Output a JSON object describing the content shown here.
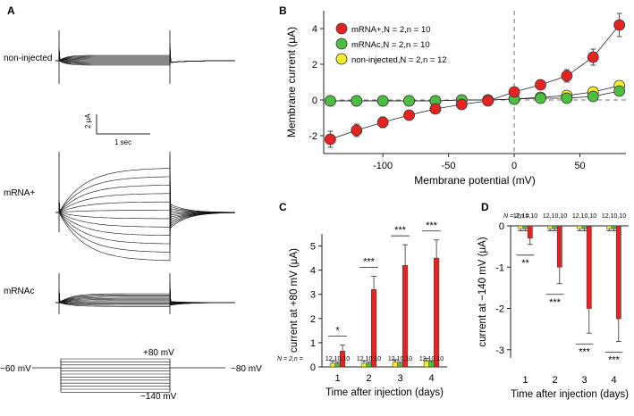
{
  "panel_a": {
    "label": "A",
    "traces": [
      {
        "name": "non-injected"
      },
      {
        "name": "mRNA+"
      },
      {
        "name": "mRNAc"
      }
    ],
    "scale_bar": {
      "y_label": "2 μA",
      "x_label": "1 sec"
    },
    "protocol": {
      "holding": "−60 mV",
      "top": "+80 mV",
      "bottom": "−140 mV",
      "tail": "−80 mV"
    }
  },
  "chart_data": [
    {
      "panel": "B",
      "type": "line",
      "xlabel": "Membrane potential (mV)",
      "ylabel": "Membrane current (μA)",
      "xlim": [
        -145,
        85
      ],
      "ylim": [
        -3,
        5
      ],
      "x_ticks": [
        -100,
        -50,
        0,
        50
      ],
      "y_ticks": [
        -2,
        0,
        2,
        4
      ],
      "x": [
        -140,
        -120,
        -100,
        -80,
        -60,
        -40,
        -20,
        0,
        20,
        40,
        60,
        80
      ],
      "series": [
        {
          "name": "mRNA+,N = 2,n = 10",
          "color": "#e52421",
          "values": [
            -2.2,
            -1.7,
            -1.25,
            -0.85,
            -0.5,
            -0.25,
            -0.05,
            0.45,
            0.85,
            1.35,
            2.4,
            4.2
          ],
          "errors": [
            0.45,
            0.35,
            0.3,
            0.2,
            0.15,
            0.1,
            0.08,
            0.15,
            0.25,
            0.35,
            0.45,
            0.65
          ]
        },
        {
          "name": "mRNAc,N = 2,n = 10",
          "color": "#4dbf40",
          "values": [
            -0.05,
            -0.05,
            -0.05,
            -0.05,
            -0.05,
            0.0,
            0.0,
            0.05,
            0.1,
            0.1,
            0.2,
            0.5
          ],
          "errors": [
            0.05,
            0.05,
            0.05,
            0.05,
            0.05,
            0.05,
            0.05,
            0.05,
            0.05,
            0.05,
            0.05,
            0.1
          ]
        },
        {
          "name": "non-injected,N = 2,n = 12",
          "color": "#f4ec2a",
          "values": [
            -0.05,
            -0.05,
            -0.05,
            -0.05,
            -0.05,
            0.0,
            0.0,
            0.05,
            0.15,
            0.25,
            0.45,
            0.8
          ],
          "errors": [
            0.05,
            0.05,
            0.05,
            0.05,
            0.05,
            0.05,
            0.05,
            0.05,
            0.05,
            0.05,
            0.08,
            0.1
          ]
        }
      ],
      "legend": "top-left",
      "annotations": [
        "dashed vertical line at 0 mV",
        "dashed horizontal line at 0 μA"
      ]
    },
    {
      "panel": "C",
      "type": "bar",
      "xlabel": "Time after injection (days)",
      "ylabel": "current at +80 mV (μA)",
      "ylim": [
        0,
        5.5
      ],
      "y_ticks": [
        0,
        1,
        2,
        3,
        4,
        5
      ],
      "categories": [
        "1",
        "2",
        "3",
        "4"
      ],
      "n_label": "N = 2,n =",
      "n_values": [
        "12,10,10",
        "12,10,10",
        "12,10,10",
        "12,10,10"
      ],
      "series": [
        {
          "name": "non-injected",
          "color": "#f4ec2a",
          "values": [
            0.15,
            0.15,
            0.2,
            0.25
          ],
          "errors": [
            0.1,
            0.1,
            0.1,
            0.1
          ]
        },
        {
          "name": "mRNAc",
          "color": "#4dbf40",
          "values": [
            0.15,
            0.15,
            0.15,
            0.2
          ],
          "errors": [
            0.05,
            0.05,
            0.05,
            0.05
          ]
        },
        {
          "name": "mRNA+",
          "color": "#e52421",
          "values": [
            0.65,
            3.2,
            4.2,
            4.5
          ],
          "errors": [
            0.25,
            0.55,
            0.85,
            0.75
          ]
        }
      ],
      "significance": [
        "*",
        "***",
        "***",
        "***"
      ]
    },
    {
      "panel": "D",
      "type": "bar",
      "xlabel": "Time after injection (days)",
      "ylabel": "current at −140 mV (μA)",
      "ylim": [
        -3.2,
        0
      ],
      "y_ticks": [
        -3,
        -2,
        -1,
        0
      ],
      "categories": [
        "1",
        "2",
        "3",
        "4"
      ],
      "n_label": "N = 2,n =",
      "n_values": [
        "12,10,10",
        "12,10,10",
        "12,10,10",
        "12,10,10"
      ],
      "series": [
        {
          "name": "non-injected",
          "color": "#f4ec2a",
          "values": [
            -0.07,
            -0.07,
            -0.07,
            -0.07
          ],
          "errors": [
            0.05,
            0.05,
            0.05,
            0.05
          ]
        },
        {
          "name": "mRNAc",
          "color": "#4dbf40",
          "values": [
            -0.07,
            -0.07,
            -0.07,
            -0.07
          ],
          "errors": [
            0.05,
            0.05,
            0.05,
            0.05
          ]
        },
        {
          "name": "mRNA+",
          "color": "#e52421",
          "values": [
            -0.3,
            -1.0,
            -2.0,
            -2.25
          ],
          "errors": [
            0.15,
            0.4,
            0.6,
            0.55
          ]
        }
      ],
      "significance": [
        "**",
        "***",
        "***",
        "***"
      ]
    }
  ]
}
